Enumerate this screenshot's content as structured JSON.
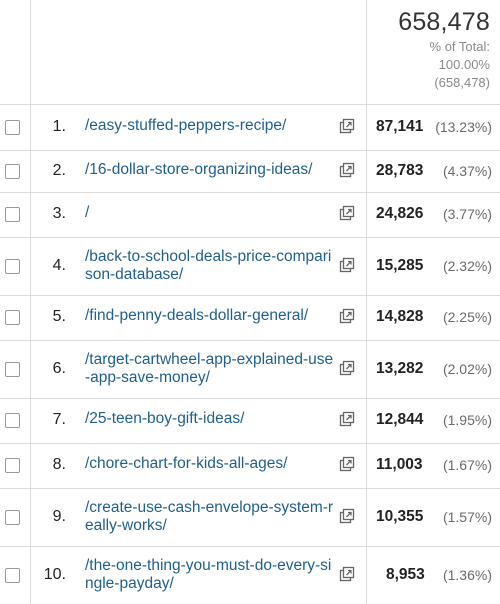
{
  "summary": {
    "total": "658,478",
    "pct_label": "% of Total:",
    "pct_value": "100.00%",
    "total_paren": "(658,478)"
  },
  "rows": [
    {
      "num": "1.",
      "path": "/easy-stuffed-peppers-recipe/",
      "value": "87,141",
      "pct": "(13.23%)"
    },
    {
      "num": "2.",
      "path": "/16-dollar-store-organizing-ideas/",
      "value": "28,783",
      "pct": "(4.37%)"
    },
    {
      "num": "3.",
      "path": "/",
      "value": "24,826",
      "pct": "(3.77%)"
    },
    {
      "num": "4.",
      "path": "/back-to-school-deals-price-comparison-database/",
      "value": "15,285",
      "pct": "(2.32%)"
    },
    {
      "num": "5.",
      "path": "/find-penny-deals-dollar-general/",
      "value": "14,828",
      "pct": "(2.25%)"
    },
    {
      "num": "6.",
      "path": "/target-cartwheel-app-explained-use-app-save-money/",
      "value": "13,282",
      "pct": "(2.02%)"
    },
    {
      "num": "7.",
      "path": "/25-teen-boy-gift-ideas/",
      "value": "12,844",
      "pct": "(1.95%)"
    },
    {
      "num": "8.",
      "path": "/chore-chart-for-kids-all-ages/",
      "value": "11,003",
      "pct": "(1.67%)"
    },
    {
      "num": "9.",
      "path": "/create-use-cash-envelope-system-really-works/",
      "value": "10,355",
      "pct": "(1.57%)"
    },
    {
      "num": "10.",
      "path": "/the-one-thing-you-must-do-every-single-payday/",
      "value": "8,953",
      "pct": "(1.36%)"
    }
  ]
}
